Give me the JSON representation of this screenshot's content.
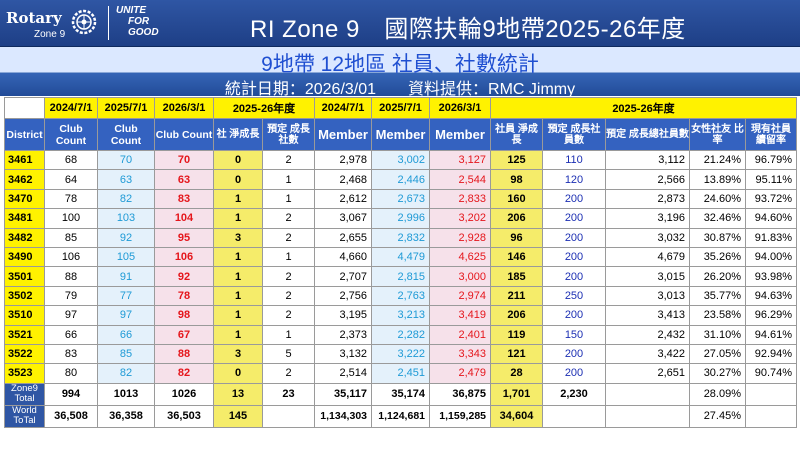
{
  "header": {
    "logo_rotary": "Rotary",
    "logo_zone": "Zone 9",
    "logo_unite_lines": [
      "UNITE",
      "FOR",
      "GOOD"
    ],
    "title": "RI Zone 9　國際扶輪9地帶2025-26年度"
  },
  "subtitle": "9地帶 12地區 社員、社數統計",
  "info": "統計日期：2026/3/01　　資料提供：RMC Jimmy",
  "table": {
    "year_headers": [
      "2024/7/1",
      "2025/7/1",
      "2026/3/1",
      "2025-26年度",
      "2024/7/1",
      "2025/7/1",
      "2026/3/1",
      "2025-26年度"
    ],
    "column_labels": [
      "District",
      "Club Count",
      "Club Count",
      "Club Count",
      "社\n淨成長",
      "預定\n成長社數",
      "Member",
      "Member",
      "Member",
      "社員\n淨成長",
      "預定\n成長社員數",
      "預定\n成長總社員數",
      "女性社友\n比率",
      "現有社員\n續留率"
    ],
    "rows": [
      [
        "3461",
        "68",
        "70",
        "70",
        "0",
        "2",
        "2,978",
        "3,002",
        "3,127",
        "125",
        "110",
        "3,112",
        "21.24%",
        "96.79%"
      ],
      [
        "3462",
        "64",
        "63",
        "63",
        "0",
        "1",
        "2,468",
        "2,446",
        "2,544",
        "98",
        "120",
        "2,566",
        "13.89%",
        "95.11%"
      ],
      [
        "3470",
        "78",
        "82",
        "83",
        "1",
        "1",
        "2,612",
        "2,673",
        "2,833",
        "160",
        "200",
        "2,873",
        "24.60%",
        "93.72%"
      ],
      [
        "3481",
        "100",
        "103",
        "104",
        "1",
        "2",
        "3,067",
        "2,996",
        "3,202",
        "206",
        "200",
        "3,196",
        "32.46%",
        "94.60%"
      ],
      [
        "3482",
        "85",
        "92",
        "95",
        "3",
        "2",
        "2,655",
        "2,832",
        "2,928",
        "96",
        "200",
        "3,032",
        "30.87%",
        "91.83%"
      ],
      [
        "3490",
        "106",
        "105",
        "106",
        "1",
        "1",
        "4,660",
        "4,479",
        "4,625",
        "146",
        "200",
        "4,679",
        "35.26%",
        "94.00%"
      ],
      [
        "3501",
        "88",
        "91",
        "92",
        "1",
        "2",
        "2,707",
        "2,815",
        "3,000",
        "185",
        "200",
        "3,015",
        "26.20%",
        "93.98%"
      ],
      [
        "3502",
        "79",
        "77",
        "78",
        "1",
        "2",
        "2,756",
        "2,763",
        "2,974",
        "211",
        "250",
        "3,013",
        "35.77%",
        "94.63%"
      ],
      [
        "3510",
        "97",
        "97",
        "98",
        "1",
        "2",
        "3,195",
        "3,213",
        "3,419",
        "206",
        "200",
        "3,413",
        "23.58%",
        "96.29%"
      ],
      [
        "3521",
        "66",
        "66",
        "67",
        "1",
        "1",
        "2,373",
        "2,282",
        "2,401",
        "119",
        "150",
        "2,432",
        "31.10%",
        "94.61%"
      ],
      [
        "3522",
        "83",
        "85",
        "88",
        "3",
        "5",
        "3,132",
        "3,222",
        "3,343",
        "121",
        "200",
        "3,422",
        "27.05%",
        "92.94%"
      ],
      [
        "3523",
        "80",
        "82",
        "82",
        "0",
        "2",
        "2,514",
        "2,451",
        "2,479",
        "28",
        "200",
        "2,651",
        "30.27%",
        "90.74%"
      ]
    ],
    "zone_total": {
      "label": "Zone9\nTotal",
      "values": [
        "994",
        "1013",
        "1026",
        "13",
        "23",
        "35,117",
        "35,174",
        "36,875",
        "1,701",
        "2,230",
        "",
        "28.09%",
        ""
      ]
    },
    "world_total": {
      "label": "World\nToTal",
      "values": [
        "36,508",
        "36,358",
        "36,503",
        "145",
        "",
        "1,134,303",
        "1,124,681",
        "1,159,285",
        "34,604",
        "",
        "",
        "27.45%",
        ""
      ]
    }
  },
  "colors": {
    "header_blue": "#2f56a4",
    "year_yellow": "#fff200",
    "value_blue": "#1e9ad6",
    "value_red": "#e5161c",
    "value_navy": "#1c2fb3",
    "subtitle_blue": "#1f4fd1"
  }
}
